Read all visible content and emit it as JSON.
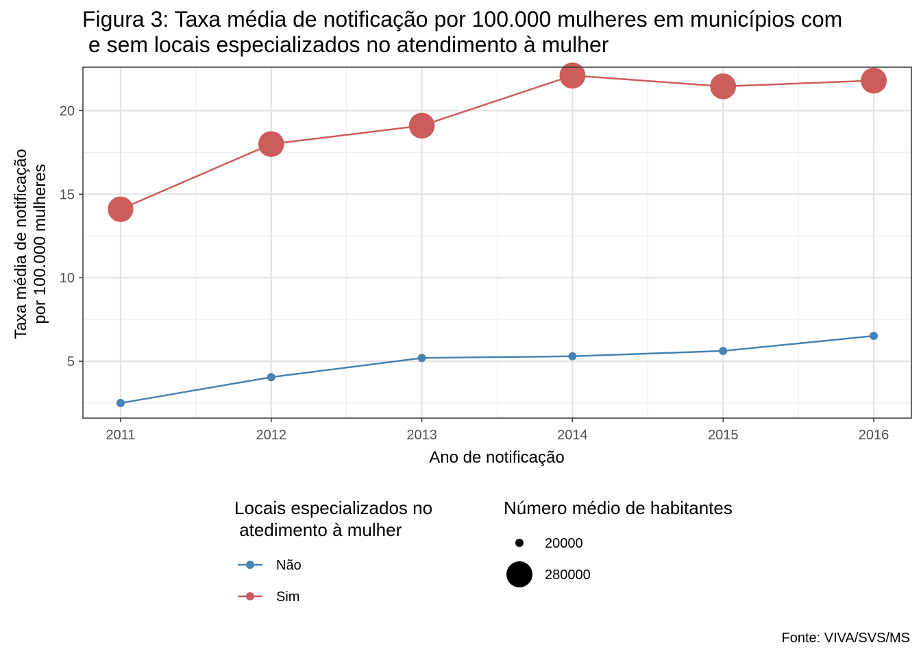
{
  "chart_data": {
    "type": "line",
    "title_lines": [
      "Figura 3: Taxa média de notificação por 100.000 mulheres em municípios com",
      " e sem locais especializados no atendimento à mulher"
    ],
    "xlabel": "Ano de notificação",
    "ylabel_lines": [
      "Taxa média de notificação",
      "por 100.000 mulheres"
    ],
    "x": [
      "2011",
      "2012",
      "2013",
      "2014",
      "2015",
      "2016"
    ],
    "xlim": [
      2010.75,
      2016.25
    ],
    "ylim": [
      1.6,
      22.6
    ],
    "y_ticks": [
      5,
      10,
      15,
      20
    ],
    "y_minor_ticks": [
      2.5,
      7.5,
      12.5,
      17.5,
      22.5
    ],
    "grid": true,
    "series": [
      {
        "name": "Não",
        "color": "#4682B4",
        "values": [
          2.5,
          4.05,
          5.2,
          5.3,
          5.62,
          6.52
        ],
        "population": [
          20000,
          20000,
          20000,
          20000,
          20000,
          20000
        ]
      },
      {
        "name": "Sim",
        "color": "#CD5C5C",
        "values": [
          14.1,
          18.0,
          19.1,
          22.1,
          21.45,
          21.8
        ],
        "population": [
          270000,
          275000,
          275000,
          282000,
          278000,
          278000
        ]
      }
    ],
    "legend": {
      "placement": "bottom",
      "color_title_lines": [
        "Locais especializados no",
        " atedimento à mulher"
      ],
      "size_title": "Número médio de habitantes",
      "size_entries": [
        {
          "value": 20000,
          "label": "20000"
        },
        {
          "value": 280000,
          "label": "280000"
        }
      ]
    },
    "caption": "Fonte: VIVA/SVS/MS"
  }
}
